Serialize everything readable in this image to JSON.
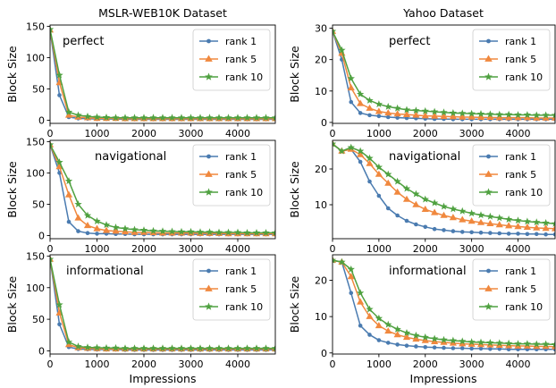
{
  "figure": {
    "column_titles": [
      "MSLR-WEB10K Dataset",
      "Yahoo Dataset"
    ],
    "xlabel": "Impressions",
    "ylabel": "Block Size"
  },
  "colors": {
    "rank 1": "#4a7bb0",
    "rank 5": "#f0883e",
    "rank 10": "#4fa140"
  },
  "markers": {
    "rank 1": "circle",
    "rank 5": "triangle",
    "rank 10": "star"
  },
  "chart_data": [
    {
      "type": "line",
      "dataset": "MSLR-WEB10K Dataset",
      "annotation": "perfect",
      "xlim": [
        0,
        4800
      ],
      "ylim": [
        -5,
        152
      ],
      "xticks": [
        0,
        1000,
        2000,
        3000,
        4000
      ],
      "yticks": [
        0,
        50,
        100,
        150
      ],
      "legend_position": "upper right",
      "x": [
        0,
        200,
        400,
        600,
        800,
        1000,
        1200,
        1400,
        1600,
        1800,
        2000,
        2200,
        2400,
        2600,
        2800,
        3000,
        3200,
        3400,
        3600,
        3800,
        4000,
        4200,
        4400,
        4600,
        4800
      ],
      "series": [
        {
          "name": "rank 1",
          "values": [
            143,
            40,
            5,
            3,
            2.5,
            2,
            2,
            2,
            1.5,
            1.5,
            1.5,
            1.5,
            1.5,
            1.5,
            1.5,
            1.5,
            1.5,
            1.5,
            1.5,
            1.5,
            1.5,
            1.5,
            1.5,
            1.5,
            1.5
          ]
        },
        {
          "name": "rank 5",
          "values": [
            144,
            60,
            8,
            5,
            4,
            3,
            3,
            3,
            2.5,
            2.5,
            2.5,
            2.5,
            2.5,
            2.5,
            2.5,
            2.5,
            2.5,
            2.5,
            2.5,
            2.5,
            2.5,
            2.5,
            2.5,
            2.5,
            2.5
          ]
        },
        {
          "name": "rank 10",
          "values": [
            145,
            72,
            13,
            8,
            6,
            5,
            4.5,
            4,
            4,
            4,
            4,
            4,
            4,
            4,
            4,
            4,
            4,
            4,
            4,
            4,
            4,
            4,
            4,
            4,
            4
          ]
        }
      ]
    },
    {
      "type": "line",
      "dataset": "Yahoo Dataset",
      "annotation": "perfect",
      "xlim": [
        0,
        4800
      ],
      "ylim": [
        -0.3,
        31
      ],
      "xticks": [
        0,
        1000,
        2000,
        3000,
        4000
      ],
      "yticks": [
        0,
        10,
        20,
        30
      ],
      "legend_position": "upper right",
      "x": [
        0,
        200,
        400,
        600,
        800,
        1000,
        1200,
        1400,
        1600,
        1800,
        2000,
        2200,
        2400,
        2600,
        2800,
        3000,
        3200,
        3400,
        3600,
        3800,
        4000,
        4200,
        4400,
        4600,
        4800
      ],
      "series": [
        {
          "name": "rank 1",
          "values": [
            29,
            20,
            6.5,
            3,
            2.3,
            2,
            1.7,
            1.5,
            1.4,
            1.3,
            1.2,
            1.1,
            1.1,
            1,
            1,
            1,
            1,
            1,
            1,
            1,
            1,
            1,
            1,
            1,
            1
          ]
        },
        {
          "name": "rank 5",
          "values": [
            29,
            22,
            11,
            6,
            4.5,
            3.5,
            3,
            2.7,
            2.5,
            2.3,
            2.1,
            2,
            1.9,
            1.8,
            1.7,
            1.7,
            1.6,
            1.6,
            1.5,
            1.5,
            1.5,
            1.5,
            1.4,
            1.4,
            1.4
          ]
        },
        {
          "name": "rank 10",
          "values": [
            29,
            23,
            14,
            9,
            7,
            5.8,
            5,
            4.5,
            4,
            3.8,
            3.6,
            3.4,
            3.2,
            3,
            2.9,
            2.8,
            2.7,
            2.6,
            2.5,
            2.5,
            2.4,
            2.4,
            2.3,
            2.3,
            2.3
          ]
        }
      ]
    },
    {
      "type": "line",
      "dataset": "MSLR-WEB10K Dataset",
      "annotation": "navigational",
      "xlim": [
        0,
        4800
      ],
      "ylim": [
        -5,
        152
      ],
      "xticks": [
        0,
        1000,
        2000,
        3000,
        4000
      ],
      "yticks": [
        0,
        50,
        100,
        150
      ],
      "legend_position": "upper right",
      "x": [
        0,
        200,
        400,
        600,
        800,
        1000,
        1200,
        1400,
        1600,
        1800,
        2000,
        2200,
        2400,
        2600,
        2800,
        3000,
        3200,
        3400,
        3600,
        3800,
        4000,
        4200,
        4400,
        4600,
        4800
      ],
      "series": [
        {
          "name": "rank 1",
          "values": [
            145,
            100,
            22,
            7,
            4,
            3,
            3,
            2.5,
            2.5,
            2,
            2,
            2,
            2,
            2,
            2,
            2,
            2,
            2,
            2,
            2,
            2,
            2,
            2,
            2,
            2
          ]
        },
        {
          "name": "rank 5",
          "values": [
            145,
            110,
            65,
            28,
            16,
            11,
            8,
            7,
            6,
            5,
            5,
            4.5,
            4,
            4,
            4,
            4,
            3.5,
            3.5,
            3.5,
            3,
            3,
            3,
            3,
            3,
            3
          ]
        },
        {
          "name": "rank 10",
          "values": [
            145,
            117,
            87,
            50,
            32,
            23,
            17,
            13,
            11,
            9.5,
            8.5,
            7.5,
            7,
            6.5,
            6,
            6,
            5.5,
            5.5,
            5,
            5,
            5,
            4.5,
            4.5,
            4.5,
            4.5
          ]
        }
      ]
    },
    {
      "type": "line",
      "dataset": "Yahoo Dataset",
      "annotation": "navigational",
      "xlim": [
        0,
        4800
      ],
      "ylim": [
        0.5,
        28
      ],
      "xticks": [
        0,
        1000,
        2000,
        3000,
        4000
      ],
      "yticks": [
        10,
        20
      ],
      "legend_position": "upper right",
      "x": [
        0,
        200,
        400,
        600,
        800,
        1000,
        1200,
        1400,
        1600,
        1800,
        2000,
        2200,
        2400,
        2600,
        2800,
        3000,
        3200,
        3400,
        3600,
        3800,
        4000,
        4200,
        4400,
        4600,
        4800
      ],
      "series": [
        {
          "name": "rank 1",
          "values": [
            27,
            25,
            25.5,
            22,
            16.5,
            12.5,
            9,
            7,
            5.5,
            4.5,
            3.8,
            3.2,
            2.9,
            2.6,
            2.4,
            2.3,
            2.2,
            2.1,
            2,
            1.9,
            1.9,
            1.8,
            1.8,
            1.7,
            1.7
          ]
        },
        {
          "name": "rank 5",
          "values": [
            27,
            25,
            25.5,
            24,
            21.5,
            18.5,
            16,
            13.5,
            11.5,
            10,
            8.7,
            7.8,
            7,
            6.4,
            5.8,
            5.4,
            5,
            4.7,
            4.4,
            4.1,
            3.9,
            3.7,
            3.5,
            3.4,
            3.3
          ]
        },
        {
          "name": "rank 10",
          "values": [
            27,
            25,
            26,
            25,
            23,
            20.5,
            18.5,
            16.5,
            14.5,
            13,
            11.5,
            10.5,
            9.5,
            8.8,
            8.2,
            7.6,
            7.1,
            6.7,
            6.3,
            5.9,
            5.6,
            5.3,
            5.1,
            4.9,
            4.7
          ]
        }
      ]
    },
    {
      "type": "line",
      "dataset": "MSLR-WEB10K Dataset",
      "annotation": "informational",
      "xlim": [
        0,
        4800
      ],
      "ylim": [
        -5,
        152
      ],
      "xticks": [
        0,
        1000,
        2000,
        3000,
        4000
      ],
      "yticks": [
        0,
        50,
        100,
        150
      ],
      "legend_position": "upper right",
      "x": [
        0,
        200,
        400,
        600,
        800,
        1000,
        1200,
        1400,
        1600,
        1800,
        2000,
        2200,
        2400,
        2600,
        2800,
        3000,
        3200,
        3400,
        3600,
        3800,
        4000,
        4200,
        4400,
        4600,
        4800
      ],
      "series": [
        {
          "name": "rank 1",
          "values": [
            145,
            42,
            6,
            3,
            2.5,
            2,
            2,
            2,
            1.5,
            1.5,
            1.5,
            1.5,
            1.5,
            1.5,
            1.5,
            1.5,
            1.5,
            1.5,
            1.5,
            1.5,
            1.5,
            1.5,
            1.5,
            1.5,
            1.5
          ]
        },
        {
          "name": "rank 5",
          "values": [
            145,
            60,
            10,
            5,
            4,
            3.5,
            3,
            3,
            3,
            3,
            3,
            3,
            3,
            3,
            3,
            3,
            3,
            3,
            3,
            3,
            3,
            3,
            3,
            3,
            3
          ]
        },
        {
          "name": "rank 10",
          "values": [
            145,
            73,
            14,
            7,
            5.5,
            5,
            4.5,
            4.5,
            4,
            4,
            4,
            4,
            4,
            4,
            4,
            4,
            4,
            4,
            4,
            4,
            4,
            4,
            4,
            4,
            4
          ]
        }
      ]
    },
    {
      "type": "line",
      "dataset": "Yahoo Dataset",
      "annotation": "informational",
      "xlim": [
        0,
        4800
      ],
      "ylim": [
        -0.3,
        27
      ],
      "xticks": [
        0,
        1000,
        2000,
        3000,
        4000
      ],
      "yticks": [
        0,
        10,
        20
      ],
      "legend_position": "upper right",
      "x": [
        0,
        200,
        400,
        600,
        800,
        1000,
        1200,
        1400,
        1600,
        1800,
        2000,
        2200,
        2400,
        2600,
        2800,
        3000,
        3200,
        3400,
        3600,
        3800,
        4000,
        4200,
        4400,
        4600,
        4800
      ],
      "series": [
        {
          "name": "rank 1",
          "values": [
            25.5,
            25,
            16.5,
            7.5,
            5,
            3.5,
            2.8,
            2.3,
            2,
            1.8,
            1.6,
            1.5,
            1.4,
            1.3,
            1.3,
            1.2,
            1.2,
            1.1,
            1.1,
            1,
            1,
            1,
            1,
            1,
            1
          ]
        },
        {
          "name": "rank 5",
          "values": [
            25.5,
            25,
            21,
            14,
            10,
            7.5,
            6,
            5,
            4.3,
            3.8,
            3.4,
            3.1,
            2.9,
            2.7,
            2.5,
            2.4,
            2.3,
            2.2,
            2.1,
            2,
            1.9,
            1.9,
            1.8,
            1.8,
            1.7
          ]
        },
        {
          "name": "rank 10",
          "values": [
            25.5,
            25,
            23,
            16.5,
            12,
            9.5,
            7.8,
            6.5,
            5.5,
            4.8,
            4.3,
            3.9,
            3.6,
            3.4,
            3.2,
            3,
            2.9,
            2.8,
            2.7,
            2.6,
            2.5,
            2.5,
            2.4,
            2.4,
            2.3
          ]
        }
      ]
    }
  ]
}
